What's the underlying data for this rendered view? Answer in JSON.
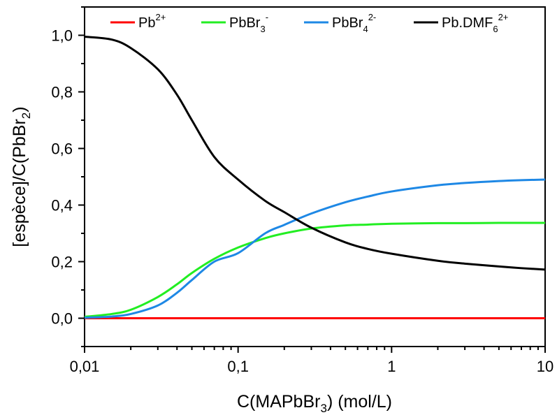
{
  "chart_data": {
    "type": "line",
    "title": "",
    "xscale": "log",
    "xlim": [
      0.01,
      10
    ],
    "ylim": [
      -0.1,
      1.1
    ],
    "grid": false,
    "legend_position": "top",
    "xlabel": {
      "pre": "C(MAPbBr",
      "sub": "3",
      "post": ") (mol/L)"
    },
    "ylabel": {
      "pre": "[espèce]/C(PbBr",
      "sub": "2",
      "post": ")"
    },
    "xticks": [
      {
        "value": 0.01,
        "label": "0,01"
      },
      {
        "value": 0.1,
        "label": "0,1"
      },
      {
        "value": 1,
        "label": "1"
      },
      {
        "value": 10,
        "label": "10"
      }
    ],
    "yticks": [
      {
        "value": 0.0,
        "label": "0,0"
      },
      {
        "value": 0.2,
        "label": "0,2"
      },
      {
        "value": 0.4,
        "label": "0,4"
      },
      {
        "value": 0.6,
        "label": "0,6"
      },
      {
        "value": 0.8,
        "label": "0,8"
      },
      {
        "value": 1.0,
        "label": "1,0"
      }
    ],
    "x": [
      0.01,
      0.015,
      0.02,
      0.03,
      0.04,
      0.05,
      0.07,
      0.1,
      0.15,
      0.2,
      0.3,
      0.5,
      0.7,
      1,
      2,
      3,
      5,
      7,
      10
    ],
    "series": [
      {
        "name_base": "Pb",
        "name_sub": "",
        "name_sup": "2+",
        "color": "#ff0000",
        "values": [
          0,
          0,
          0,
          0,
          0,
          0,
          0,
          0,
          0,
          0,
          0,
          0,
          0,
          0,
          0,
          0,
          0,
          0,
          0
        ]
      },
      {
        "name_base": "PbBr",
        "name_sub": "3",
        "name_sup": "-",
        "color": "#22ee22",
        "values": [
          0.005,
          0.015,
          0.03,
          0.075,
          0.12,
          0.16,
          0.21,
          0.25,
          0.283,
          0.3,
          0.317,
          0.328,
          0.331,
          0.334,
          0.336,
          0.336,
          0.337,
          0.337,
          0.337
        ]
      },
      {
        "name_base": "PbBr",
        "name_sub": "4",
        "name_sup": "2-",
        "color": "#1e88e5",
        "values": [
          0.002,
          0.006,
          0.015,
          0.045,
          0.09,
          0.135,
          0.2,
          0.23,
          0.3,
          0.33,
          0.37,
          0.41,
          0.43,
          0.448,
          0.47,
          0.478,
          0.485,
          0.488,
          0.49
        ]
      },
      {
        "name_base": "Pb.DMF",
        "name_sub": "6",
        "name_sup": "2+",
        "color": "#000000",
        "values": [
          0.995,
          0.985,
          0.955,
          0.88,
          0.79,
          0.7,
          0.57,
          0.49,
          0.415,
          0.375,
          0.32,
          0.268,
          0.245,
          0.228,
          0.203,
          0.193,
          0.183,
          0.177,
          0.172
        ]
      }
    ]
  }
}
